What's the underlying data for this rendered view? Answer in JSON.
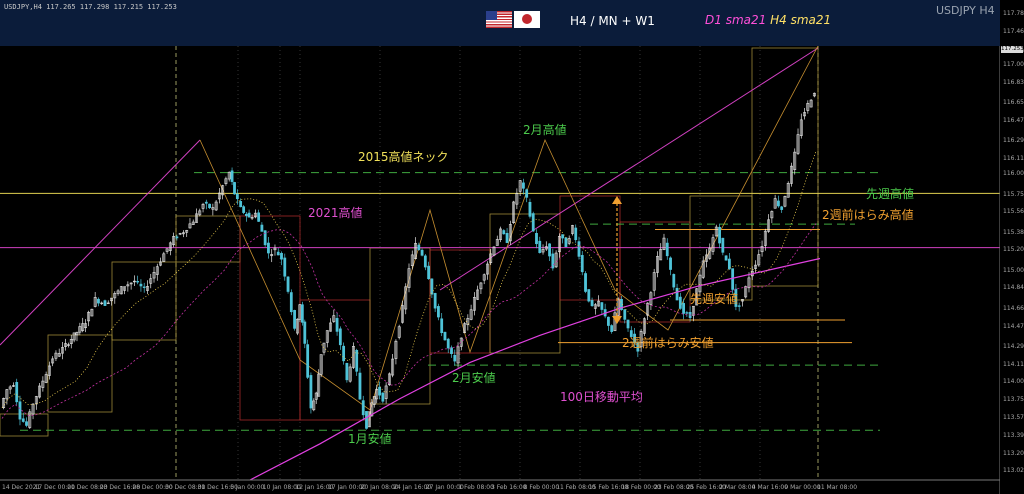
{
  "header": {
    "info_line": "USDJPY,H4  117.265 117.298 117.215 117.253",
    "timeframes": "H4 / MN + W1",
    "sma_d1": "D1 sma21",
    "sma_h4": "H4 sma21",
    "symbol": "USDJPY H4"
  },
  "icons": [
    "us-flag-icon",
    "japan-flag-icon"
  ],
  "colors": {
    "background": "#000000",
    "candle_up": "#e8e8e8",
    "candle_down": "#4fc3d8",
    "level_green": "#3fa83f",
    "level_yellow": "#e0d050",
    "level_magenta": "#d040c0",
    "level_orange": "#f0a030"
  },
  "annotations": {
    "neck_2015": "2015高値ネック",
    "high_2021": "2021高値",
    "feb_high": "2月高値",
    "feb_low": "2月安値",
    "jan_low": "1月安値",
    "last_week_high": "先週高値",
    "two_weeks_engulf_high": "2週前はらみ高値",
    "last_week_low": "先週安値",
    "two_weeks_engulf_low": "2週前はらみ安値",
    "ma100": "100日移動平均"
  },
  "chart_data": {
    "type": "line",
    "title": "",
    "xlabel": "",
    "ylabel": "",
    "ylim": [
      112.95,
      117.75
    ],
    "y_ticks": [
      "117.780",
      "117.460",
      "117.200",
      "117.000",
      "116.835",
      "116.655",
      "116.470",
      "116.295",
      "116.110",
      "116.000",
      "115.750",
      "115.565",
      "115.385",
      "115.205",
      "115.000",
      "114.840",
      "114.660",
      "114.475",
      "114.295",
      "114.115",
      "114.000",
      "113.750",
      "113.570",
      "113.390",
      "113.200",
      "113.025"
    ],
    "current_price": "117.253",
    "x_ticks": [
      "14 Dec 2021",
      "17 Dec 00:00",
      "21 Dec 08:00",
      "23 Dec 16:00",
      "28 Dec 00:00",
      "30 Dec 08:00",
      "31 Dec 16:00",
      "5 Jan 00:00",
      "10 Jan 08:00",
      "12 Jan 16:00",
      "17 Jan 00:00",
      "20 Jan 08:00",
      "24 Jan 16:00",
      "27 Jan 00:00",
      "1 Feb 08:00",
      "3 Feb 16:00",
      "8 Feb 00:00",
      "11 Feb 08:00",
      "15 Feb 16:00",
      "18 Feb 00:00",
      "23 Feb 08:00",
      "25 Feb 16:00",
      "2 Mar 08:00",
      "4 Mar 16:00",
      "9 Mar 00:00",
      "11 Mar 08:00"
    ],
    "price_path": [
      [
        0,
        113.75
      ],
      [
        4,
        113.95
      ],
      [
        8,
        114.02
      ],
      [
        12,
        113.65
      ],
      [
        16,
        113.55
      ],
      [
        20,
        113.8
      ],
      [
        26,
        114.05
      ],
      [
        32,
        114.3
      ],
      [
        38,
        114.4
      ],
      [
        45,
        114.55
      ],
      [
        52,
        114.7
      ],
      [
        58,
        114.95
      ],
      [
        64,
        114.9
      ],
      [
        70,
        115.0
      ],
      [
        76,
        115.1
      ],
      [
        82,
        115.15
      ],
      [
        88,
        115.05
      ],
      [
        94,
        115.25
      ],
      [
        100,
        115.45
      ],
      [
        106,
        115.62
      ],
      [
        112,
        115.7
      ],
      [
        118,
        115.82
      ],
      [
        124,
        116.0
      ],
      [
        130,
        115.95
      ],
      [
        136,
        116.2
      ],
      [
        140,
        116.35
      ],
      [
        143,
        116.12
      ],
      [
        147,
        115.95
      ],
      [
        152,
        115.85
      ],
      [
        156,
        115.9
      ],
      [
        160,
        115.7
      ],
      [
        164,
        115.45
      ],
      [
        168,
        115.5
      ],
      [
        172,
        115.4
      ],
      [
        176,
        115.05
      ],
      [
        180,
        114.6
      ],
      [
        183,
        114.9
      ],
      [
        186,
        114.45
      ],
      [
        190,
        113.75
      ],
      [
        193,
        113.9
      ],
      [
        196,
        114.35
      ],
      [
        200,
        114.6
      ],
      [
        204,
        114.75
      ],
      [
        208,
        114.45
      ],
      [
        212,
        114.05
      ],
      [
        216,
        114.4
      ],
      [
        220,
        113.85
      ],
      [
        224,
        113.55
      ],
      [
        227,
        113.8
      ],
      [
        230,
        113.95
      ],
      [
        234,
        113.85
      ],
      [
        238,
        114.1
      ],
      [
        242,
        114.5
      ],
      [
        246,
        114.85
      ],
      [
        250,
        115.3
      ],
      [
        254,
        115.55
      ],
      [
        258,
        115.45
      ],
      [
        262,
        115.2
      ],
      [
        266,
        114.85
      ],
      [
        270,
        114.6
      ],
      [
        274,
        114.4
      ],
      [
        278,
        114.25
      ],
      [
        282,
        114.55
      ],
      [
        286,
        114.75
      ],
      [
        290,
        114.95
      ],
      [
        294,
        115.15
      ],
      [
        298,
        115.35
      ],
      [
        302,
        115.55
      ],
      [
        306,
        115.7
      ],
      [
        310,
        115.6
      ],
      [
        314,
        116.0
      ],
      [
        318,
        116.25
      ],
      [
        322,
        116.05
      ],
      [
        326,
        115.7
      ],
      [
        330,
        115.45
      ],
      [
        334,
        115.55
      ],
      [
        338,
        115.3
      ],
      [
        342,
        115.65
      ],
      [
        346,
        115.55
      ],
      [
        350,
        115.75
      ],
      [
        354,
        115.45
      ],
      [
        358,
        115.05
      ],
      [
        362,
        114.85
      ],
      [
        366,
        114.9
      ],
      [
        370,
        114.75
      ],
      [
        374,
        114.6
      ],
      [
        378,
        114.95
      ],
      [
        382,
        114.7
      ],
      [
        386,
        114.55
      ],
      [
        390,
        114.4
      ],
      [
        394,
        114.75
      ],
      [
        398,
        115.05
      ],
      [
        402,
        115.4
      ],
      [
        406,
        115.6
      ],
      [
        410,
        115.25
      ],
      [
        414,
        114.95
      ],
      [
        418,
        114.8
      ],
      [
        422,
        114.75
      ],
      [
        426,
        115.05
      ],
      [
        430,
        115.35
      ],
      [
        434,
        115.5
      ],
      [
        438,
        115.75
      ],
      [
        442,
        115.45
      ],
      [
        446,
        115.3
      ],
      [
        450,
        114.85
      ],
      [
        454,
        114.95
      ],
      [
        458,
        115.2
      ],
      [
        462,
        115.35
      ],
      [
        466,
        115.55
      ],
      [
        470,
        115.85
      ],
      [
        474,
        116.05
      ],
      [
        478,
        115.95
      ],
      [
        482,
        116.25
      ],
      [
        486,
        116.55
      ],
      [
        490,
        116.95
      ],
      [
        494,
        117.1
      ],
      [
        498,
        117.25
      ]
    ],
    "horizontal_levels": [
      {
        "label": "2015高値ネック",
        "price": 116.12,
        "color": "yellow"
      },
      {
        "label": "2021高値",
        "price": 115.52,
        "color": "magenta"
      },
      {
        "label": "2月高値",
        "price": 116.35,
        "color": "green-dashed"
      },
      {
        "label": "先週高値",
        "price": 115.78,
        "color": "green-dashed"
      },
      {
        "label": "2週前はらみ高値",
        "price": 115.72,
        "color": "orange"
      },
      {
        "label": "先週安値",
        "price": 114.72,
        "color": "orange"
      },
      {
        "label": "2週前はらみ安値",
        "price": 114.47,
        "color": "orange"
      },
      {
        "label": "2月安値",
        "price": 114.22,
        "color": "green-dashed"
      },
      {
        "label": "1月安値",
        "price": 113.5,
        "color": "green-dashed"
      }
    ],
    "ma100_path": [
      [
        250,
        112.95
      ],
      [
        320,
        113.35
      ],
      [
        400,
        113.85
      ],
      [
        470,
        114.25
      ],
      [
        540,
        114.55
      ],
      [
        620,
        114.85
      ],
      [
        700,
        115.1
      ],
      [
        780,
        115.3
      ],
      [
        820,
        115.4
      ]
    ],
    "grid": false,
    "legend": "none"
  }
}
